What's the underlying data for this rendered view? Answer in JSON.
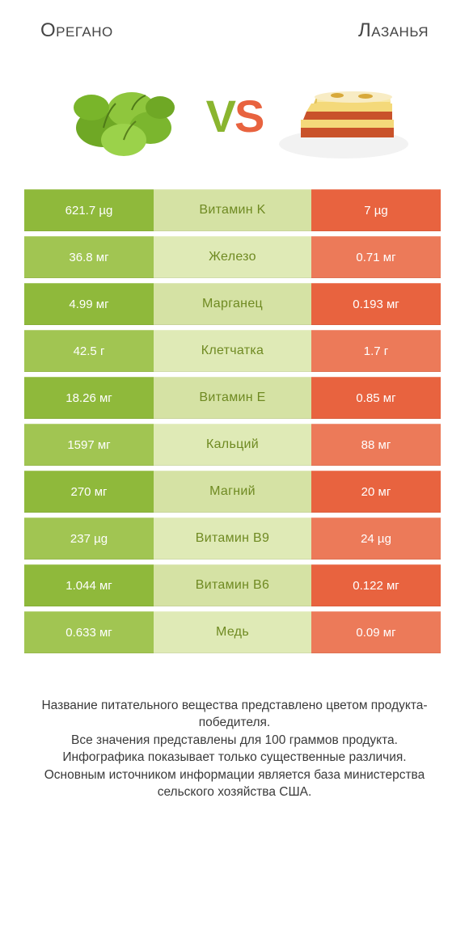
{
  "colors": {
    "green_base": "#8fb93b",
    "green_alt": "#a1c552",
    "center_base": "#d5e2a4",
    "center_alt": "#dfeab6",
    "orange_base": "#e8633f",
    "orange_alt": "#ec7a59",
    "center_text": "#6f8a22"
  },
  "header": {
    "left": "Oрегано",
    "right": "Лазанья",
    "vs_left": "V",
    "vs_right": "S"
  },
  "rows": [
    {
      "l": "621.7 µg",
      "c": "Витамин K",
      "r": "7 µg"
    },
    {
      "l": "36.8 мг",
      "c": "Железо",
      "r": "0.71 мг"
    },
    {
      "l": "4.99 мг",
      "c": "Марганец",
      "r": "0.193 мг"
    },
    {
      "l": "42.5 г",
      "c": "Клетчатка",
      "r": "1.7 г"
    },
    {
      "l": "18.26 мг",
      "c": "Витамин E",
      "r": "0.85 мг"
    },
    {
      "l": "1597 мг",
      "c": "Кальций",
      "r": "88 мг"
    },
    {
      "l": "270 мг",
      "c": "Магний",
      "r": "20 мг"
    },
    {
      "l": "237 µg",
      "c": "Витамин B9",
      "r": "24 µg"
    },
    {
      "l": "1.044 мг",
      "c": "Витамин B6",
      "r": "0.122 мг"
    },
    {
      "l": "0.633 мг",
      "c": "Медь",
      "r": "0.09 мг"
    }
  ],
  "footer": [
    "Название питательного вещества представлено цветом продукта-победителя.",
    "Все значения представлены для 100 граммов продукта.",
    "Инфографика показывает только существенные различия.",
    "Основным источником информации является база министерства сельского хозяйства США."
  ]
}
